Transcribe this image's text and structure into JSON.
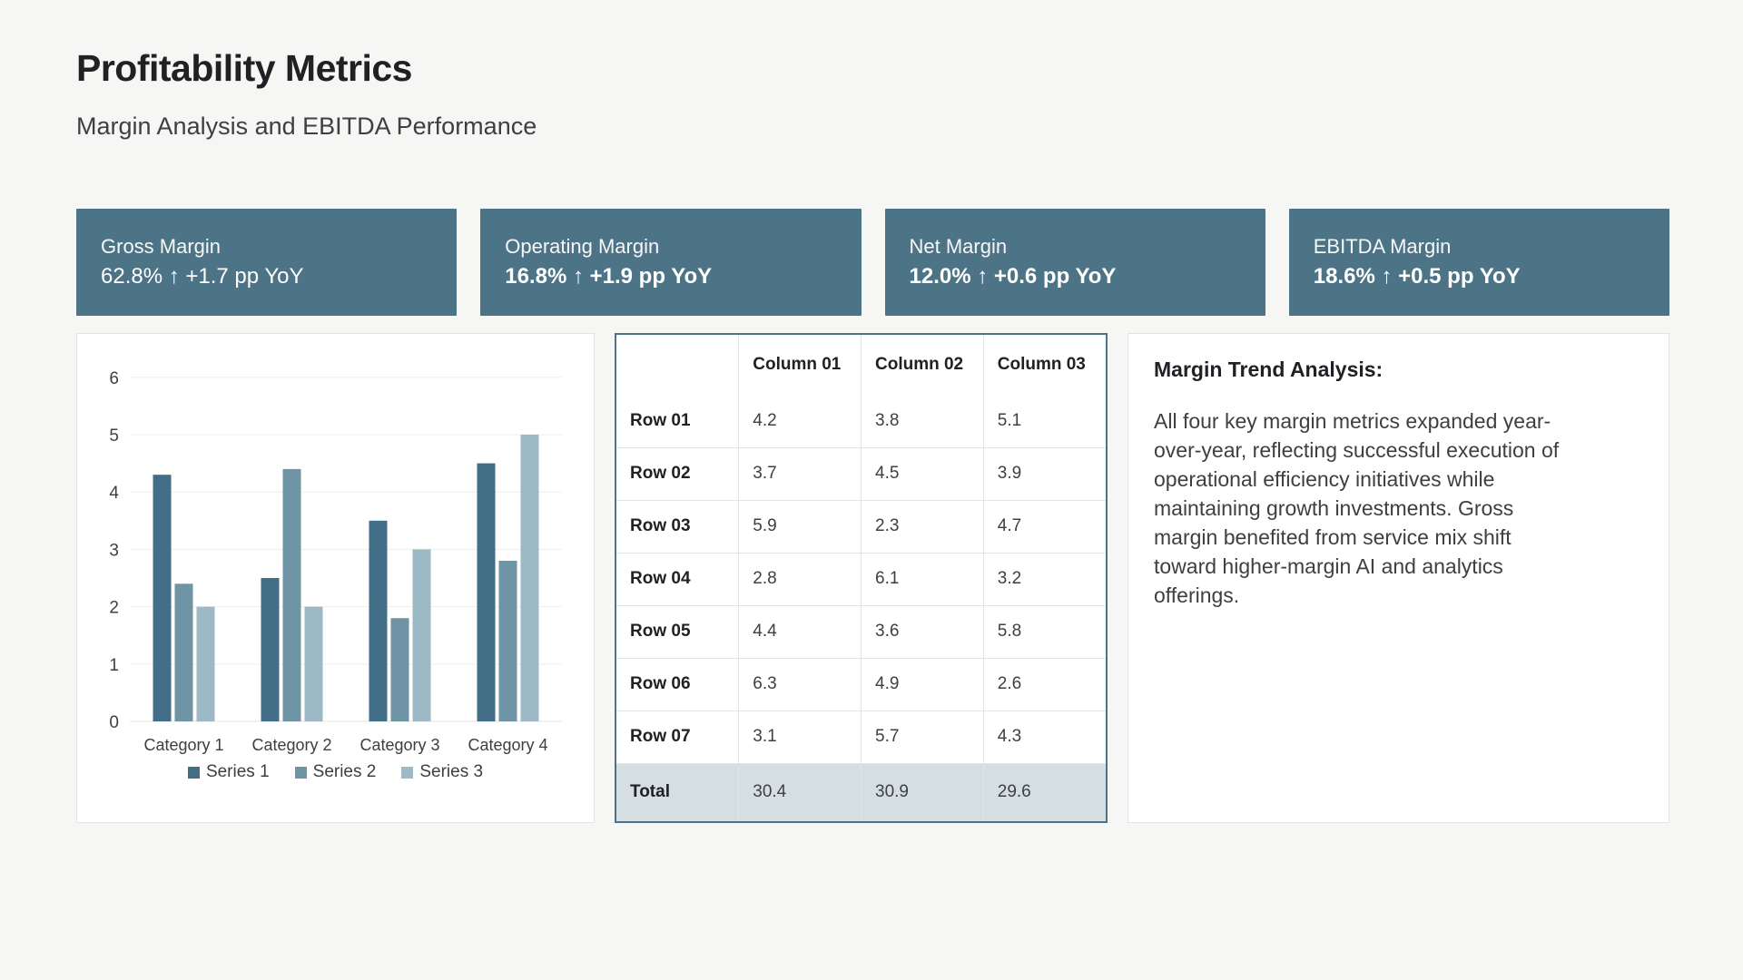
{
  "page": {
    "title": "Profitability Metrics",
    "subtitle": "Margin Analysis and EBITDA Performance"
  },
  "kpi_cards": [
    {
      "label": "Gross Margin",
      "value": "62.8% ↑ +1.7 pp YoY",
      "value_bold": false
    },
    {
      "label": "Operating Margin",
      "value": "16.8% ↑ +1.9 pp YoY",
      "value_bold": true
    },
    {
      "label": "Net Margin",
      "value": "12.0% ↑ +0.6 pp YoY",
      "value_bold": true
    },
    {
      "label": "EBITDA Margin",
      "value": "18.6% ↑ +0.5 pp YoY",
      "value_bold": true
    }
  ],
  "chart_data": {
    "type": "bar",
    "categories": [
      "Category 1",
      "Category 2",
      "Category 3",
      "Category 4"
    ],
    "series": [
      {
        "name": "Series 1",
        "values": [
          4.3,
          2.5,
          3.5,
          4.5
        ]
      },
      {
        "name": "Series 2",
        "values": [
          2.4,
          4.4,
          1.8,
          2.8
        ]
      },
      {
        "name": "Series 3",
        "values": [
          2.0,
          2.0,
          3.0,
          5.0
        ]
      }
    ],
    "title": "",
    "xlabel": "",
    "ylabel": "",
    "ylim": [
      0,
      6
    ],
    "yticks": [
      0,
      1,
      2,
      3,
      4,
      5,
      6
    ],
    "grid": true,
    "legend_position": "bottom",
    "series_colors": [
      "#426e88",
      "#6f94a6",
      "#9eb9c6"
    ]
  },
  "table": {
    "column_headers": [
      "",
      "Column 01",
      "Column 02",
      "Column 03"
    ],
    "rows": [
      {
        "label": "Row 01",
        "values": [
          "4.2",
          "3.8",
          "5.1"
        ]
      },
      {
        "label": "Row 02",
        "values": [
          "3.7",
          "4.5",
          "3.9"
        ]
      },
      {
        "label": "Row 03",
        "values": [
          "5.9",
          "2.3",
          "4.7"
        ]
      },
      {
        "label": "Row 04",
        "values": [
          "2.8",
          "6.1",
          "3.2"
        ]
      },
      {
        "label": "Row 05",
        "values": [
          "4.4",
          "3.6",
          "5.8"
        ]
      },
      {
        "label": "Row 06",
        "values": [
          "6.3",
          "4.9",
          "2.6"
        ]
      },
      {
        "label": "Row 07",
        "values": [
          "3.1",
          "5.7",
          "4.3"
        ]
      }
    ],
    "total_row": {
      "label": "Total",
      "values": [
        "30.4",
        "30.9",
        "29.6"
      ]
    }
  },
  "analysis": {
    "heading": "Margin Trend Analysis:",
    "body": "All four key margin metrics expanded year-over-year, reflecting successful execution of operational efficiency initiatives while maintaining growth investments. Gross margin benefited from service mix shift toward higher-margin AI and analytics offerings."
  },
  "colors": {
    "accent_teal": "#4c7486",
    "page_background": "#f6f6f4",
    "total_row_background": "#d5dee2",
    "gridline": "#ededec",
    "axis_text": "#3c4043"
  }
}
